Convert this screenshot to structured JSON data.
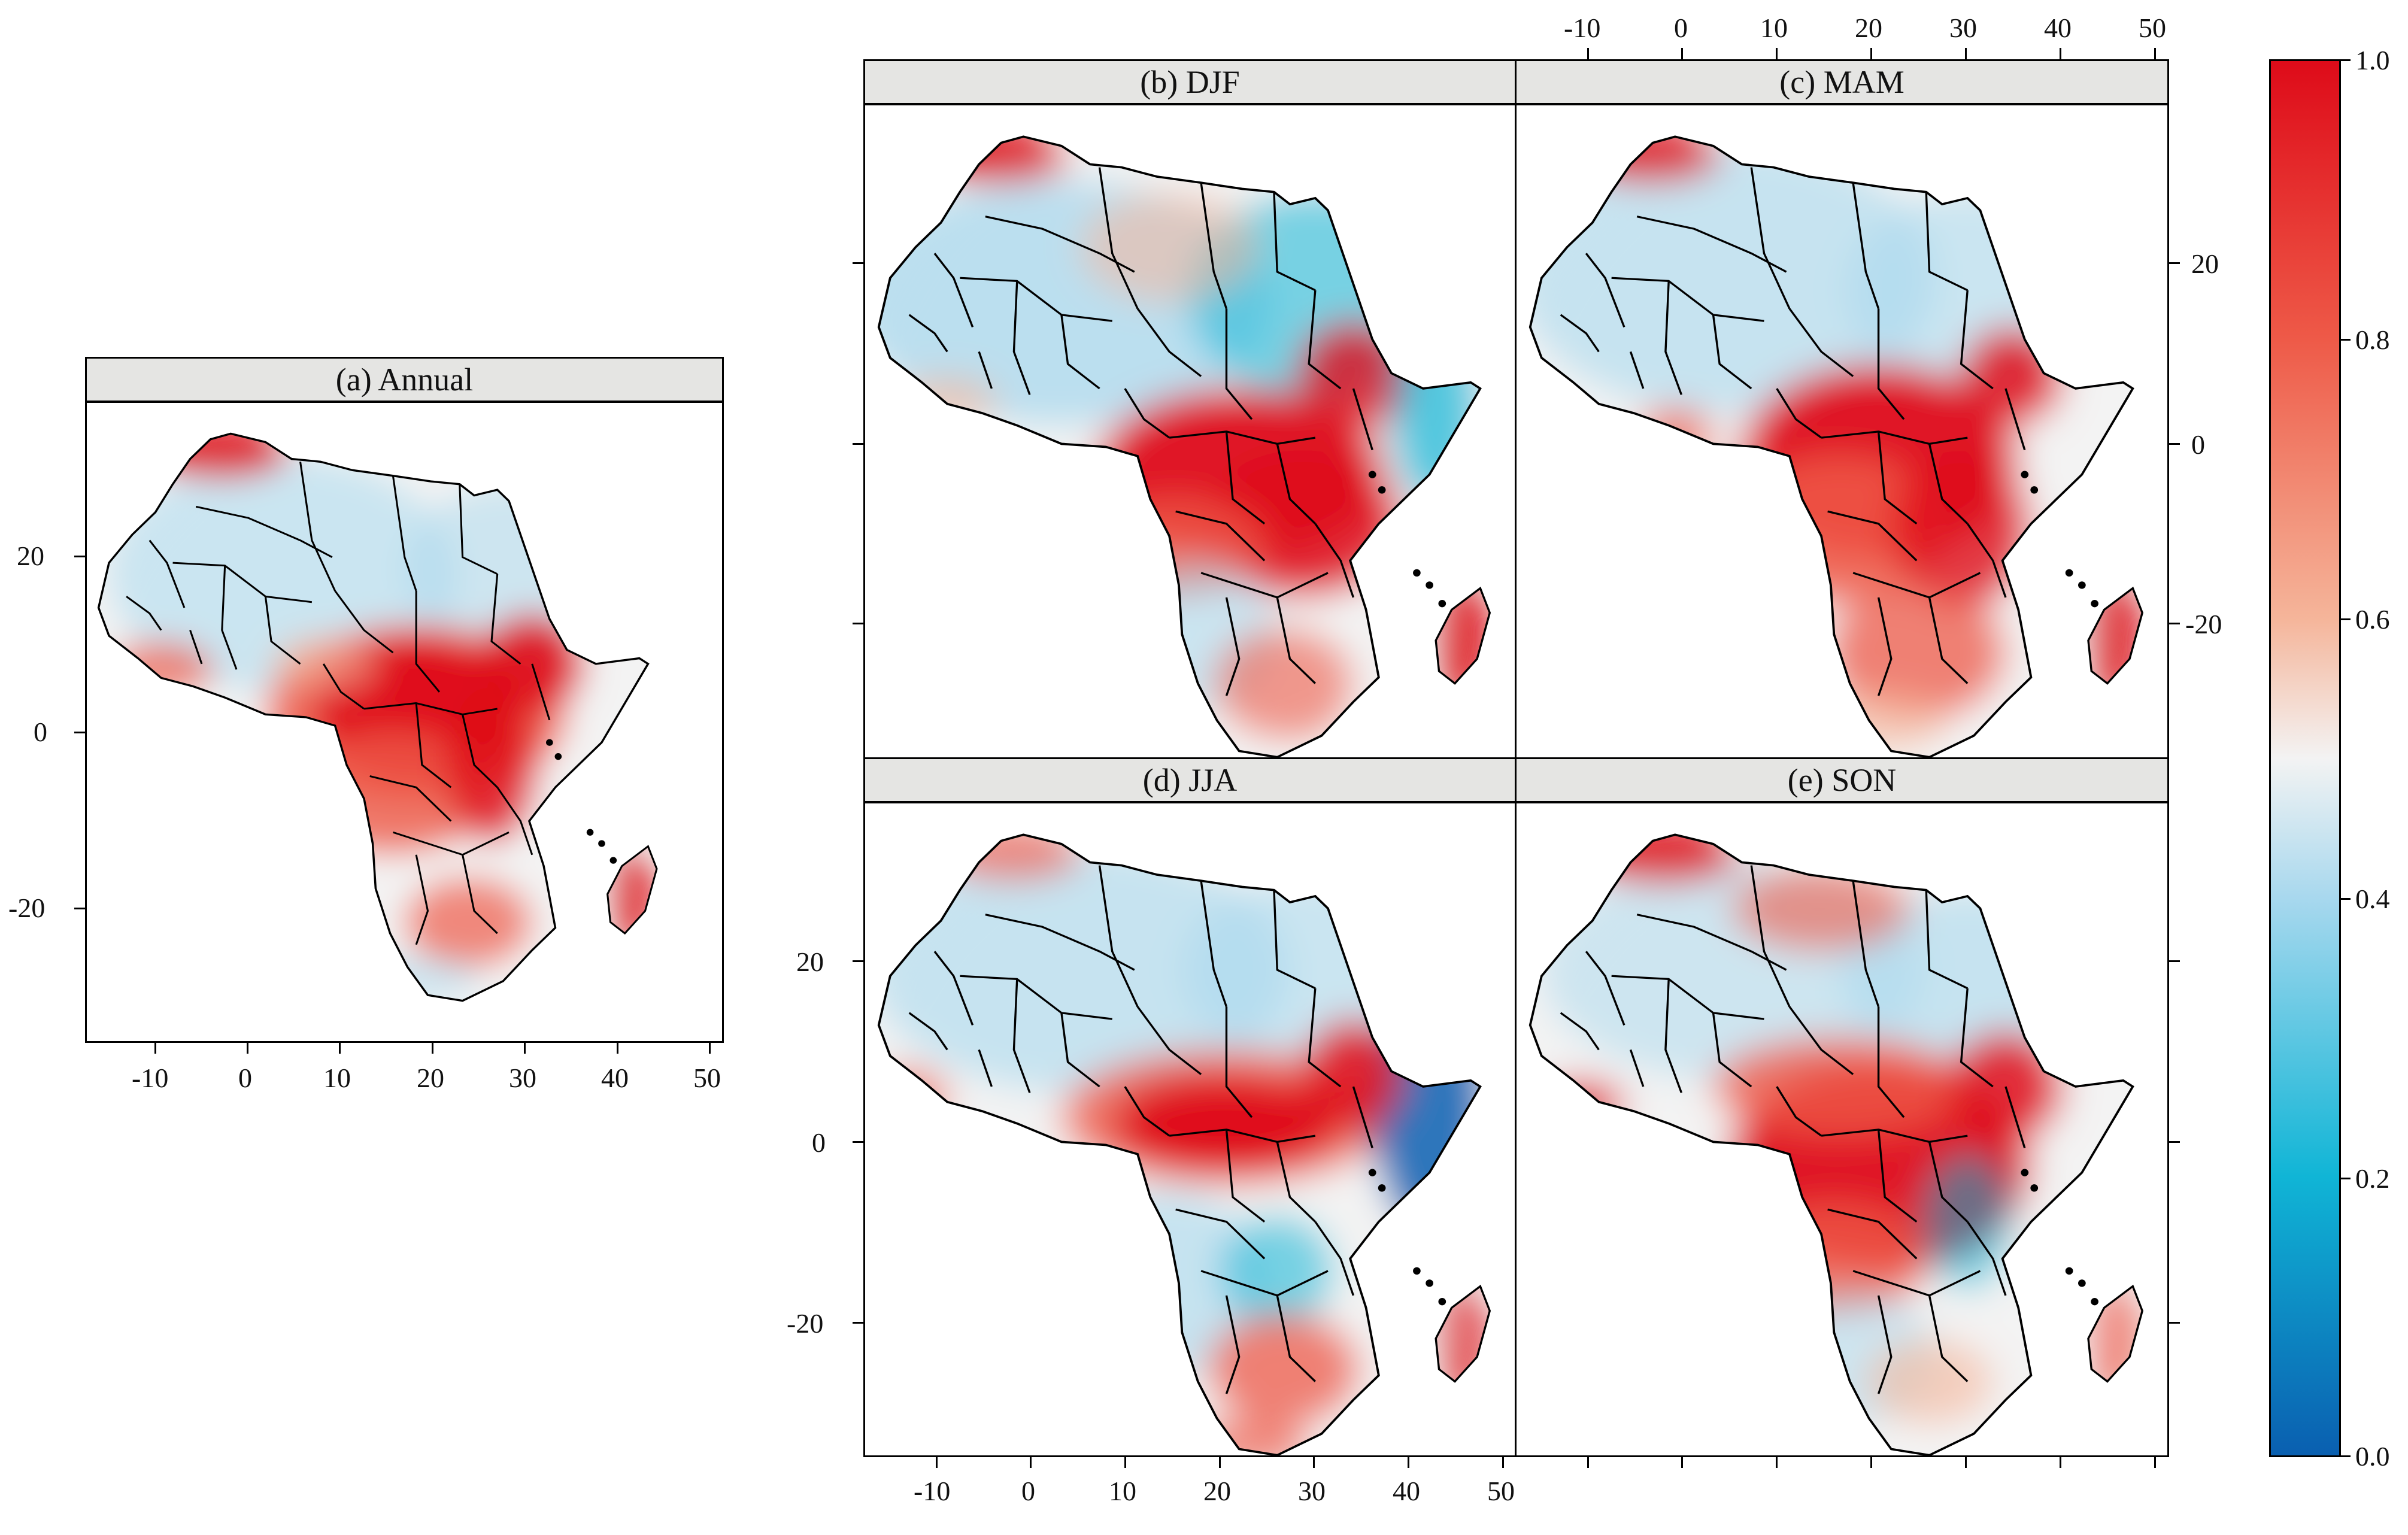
{
  "map": {
    "panels": [
      {
        "id": "annual",
        "title": "(a) Annual"
      },
      {
        "id": "djf",
        "title": "(b) DJF"
      },
      {
        "id": "mam",
        "title": "(c) MAM"
      },
      {
        "id": "jja",
        "title": "(d) JJA"
      },
      {
        "id": "son",
        "title": "(e) SON"
      }
    ],
    "longitude_ticks": [
      "-10",
      "0",
      "10",
      "20",
      "30",
      "40",
      "50"
    ],
    "latitude_ticks": [
      "20",
      "0",
      "-20"
    ],
    "colorbar": {
      "min": 0.0,
      "max": 1.0,
      "labels": [
        "1.0",
        "0.8",
        "0.6",
        "0.4",
        "0.2",
        "0.0"
      ],
      "colors": {
        "0.0": "#0a5fb0",
        "0.2": "#10b5d6",
        "0.4": "#a8d8ee",
        "0.5": "#f3f3f3",
        "0.6": "#f5b59a",
        "0.8": "#ee5a48",
        "1.0": "#de0b19"
      }
    },
    "colors": {
      "strip_background": "#e5e5e3",
      "border": "#000000",
      "country_lines": "#000000"
    }
  }
}
